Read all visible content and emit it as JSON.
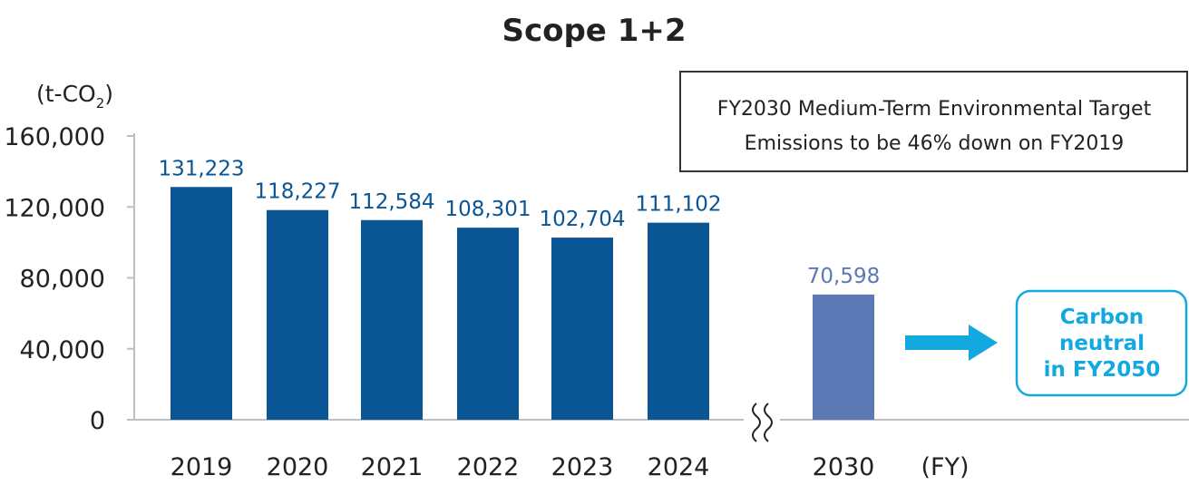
{
  "chart_data": {
    "type": "bar",
    "title": "Scope 1+2",
    "ylabel": "(t-CO",
    "ylabel_sub": "2",
    "ylabel_close": ")",
    "xlabel": "(FY)",
    "ylim": [
      0,
      160000
    ],
    "yticks": [
      0,
      40000,
      80000,
      120000,
      160000
    ],
    "ytick_labels": [
      "0",
      "40,000",
      "80,000",
      "120,000",
      "160,000"
    ],
    "categories": [
      "2019",
      "2020",
      "2021",
      "2022",
      "2023",
      "2024",
      "2030"
    ],
    "values": [
      131223,
      118227,
      112584,
      108301,
      102704,
      111102,
      70598
    ],
    "value_labels": [
      "131,223",
      "118,227",
      "112,584",
      "108,301",
      "102,704",
      "111,102",
      "70,598"
    ],
    "target_category": "2030",
    "axis_break": "between 2024 and 2030",
    "colors": {
      "actual": "#0a5594",
      "target": "#5b79b4",
      "arrow": "#13a9e0",
      "axis": "#bfbfbf"
    },
    "grid": false,
    "annotation_box": {
      "line1": "FY2030 Medium-Term Environmental Target",
      "line2": "Emissions to be 46% down on FY2019"
    },
    "callout": {
      "lines": [
        "Carbon",
        "neutral",
        "in FY2050"
      ]
    }
  }
}
